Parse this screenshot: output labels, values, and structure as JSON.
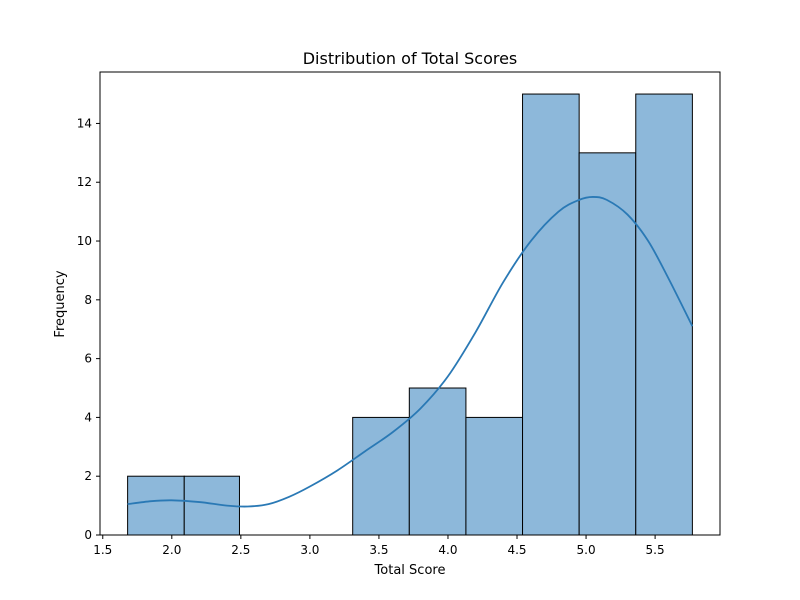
{
  "chart_data": {
    "type": "bar",
    "title": "Distribution of Total Scores",
    "xlabel": "Total Score",
    "ylabel": "Frequency",
    "xlim": [
      1.48,
      5.97
    ],
    "ylim": [
      0,
      15.75
    ],
    "xticks": [
      1.5,
      2.0,
      2.5,
      3.0,
      3.5,
      4.0,
      4.5,
      5.0,
      5.5
    ],
    "xtick_labels": [
      "1.5",
      "2.0",
      "2.5",
      "3.0",
      "3.5",
      "4.0",
      "4.5",
      "5.0",
      "5.5"
    ],
    "yticks": [
      0,
      2,
      4,
      6,
      8,
      10,
      12,
      14
    ],
    "ytick_labels": [
      "0",
      "2",
      "4",
      "6",
      "8",
      "10",
      "12",
      "14"
    ],
    "bins": [
      {
        "x0": 1.68,
        "x1": 2.09,
        "count": 2
      },
      {
        "x0": 2.09,
        "x1": 2.49,
        "count": 2
      },
      {
        "x0": 2.49,
        "x1": 2.9,
        "count": 0
      },
      {
        "x0": 2.9,
        "x1": 3.31,
        "count": 0
      },
      {
        "x0": 3.31,
        "x1": 3.72,
        "count": 4
      },
      {
        "x0": 3.72,
        "x1": 4.13,
        "count": 5
      },
      {
        "x0": 4.13,
        "x1": 4.54,
        "count": 4
      },
      {
        "x0": 4.54,
        "x1": 4.95,
        "count": 15
      },
      {
        "x0": 4.95,
        "x1": 5.36,
        "count": 13
      },
      {
        "x0": 5.36,
        "x1": 5.77,
        "count": 15
      }
    ],
    "kde": {
      "x": [
        1.68,
        1.85,
        2.0,
        2.2,
        2.4,
        2.55,
        2.7,
        2.85,
        3.0,
        3.2,
        3.4,
        3.6,
        3.8,
        4.0,
        4.2,
        4.4,
        4.6,
        4.8,
        4.95,
        5.05,
        5.15,
        5.3,
        5.45,
        5.6,
        5.77
      ],
      "y": [
        1.05,
        1.15,
        1.18,
        1.12,
        1.0,
        0.97,
        1.05,
        1.3,
        1.65,
        2.2,
        2.85,
        3.5,
        4.3,
        5.4,
        6.9,
        8.6,
        10.0,
        11.0,
        11.4,
        11.5,
        11.4,
        10.9,
        10.0,
        8.7,
        7.1
      ]
    },
    "colors": {
      "bar_fill": "#8db8da",
      "bar_edge": "#000000",
      "kde_line": "#2a79b5"
    },
    "grid": false,
    "legend": "none"
  }
}
